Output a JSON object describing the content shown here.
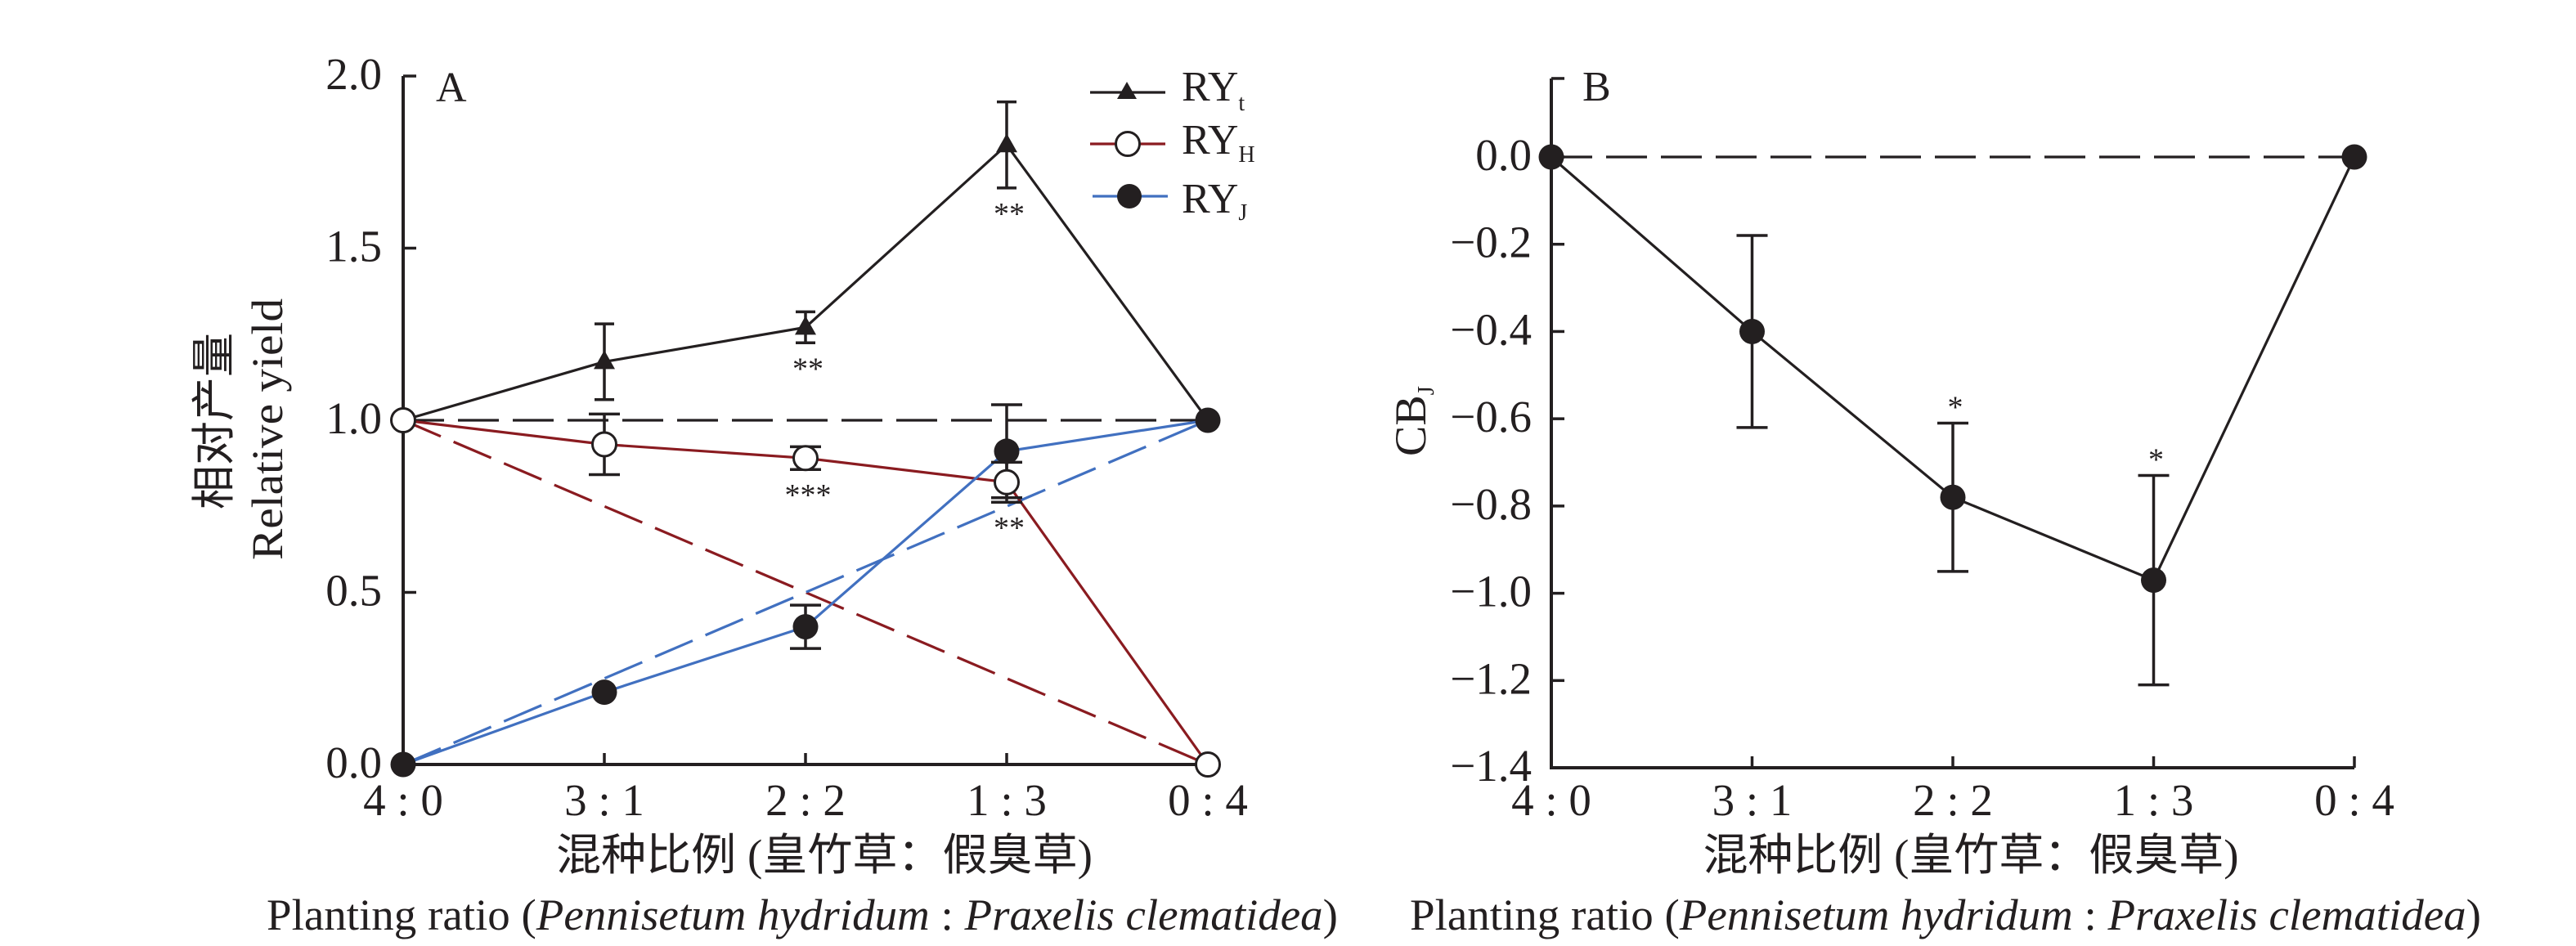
{
  "chart_data": [
    {
      "type": "line",
      "panel_label": "A",
      "x": [
        "4 : 0",
        "3 : 1",
        "2 : 2",
        "1 : 3",
        "0 : 4"
      ],
      "xlabel": {
        "zh": "混种比例 (皇竹草：假臭草)",
        "en_prefix": "Planting ratio (",
        "en_species_1": "Pennisetum hydridum",
        "en_separator": " : ",
        "en_species_2": "Praxelis clematidea",
        "en_suffix": ")"
      },
      "ylabel": {
        "zh": "相对产量",
        "en": "Relative yield"
      },
      "ylim": [
        0,
        2.0
      ],
      "yticks": [
        0.0,
        0.5,
        1.0,
        1.5,
        2.0
      ],
      "ytick_labels": [
        "0.0",
        "0.5",
        "1.0",
        "1.5",
        "2.0"
      ],
      "grid": false,
      "legend": "top-right",
      "series": [
        {
          "name": "RYt",
          "label_main": "RY",
          "label_sub": "t",
          "line_color": "#231f20",
          "marker": "filled-triangle",
          "values": [
            1.0,
            1.17,
            1.27,
            1.8,
            1.0
          ],
          "errors": [
            0,
            0.11,
            0.045,
            0.125,
            0
          ]
        },
        {
          "name": "RYH",
          "label_main": "RY",
          "label_sub": "H",
          "line_color": "#8a1b20",
          "marker": "open-circle",
          "values": [
            1.0,
            0.93,
            0.89,
            0.82,
            0.0
          ],
          "errors": [
            0,
            0.088,
            0.033,
            0.058,
            0
          ]
        },
        {
          "name": "RYJ",
          "label_main": "RY",
          "label_sub": "J",
          "line_color": "#4170c0",
          "marker": "filled-circle",
          "values": [
            0.0,
            0.21,
            0.4,
            0.91,
            1.0
          ],
          "errors": [
            0,
            0,
            0.063,
            0.135,
            0
          ]
        }
      ],
      "reference_lines": [
        {
          "name": "expected-ryt",
          "line_color": "#231f20",
          "style": "dashed",
          "start": 1.0,
          "end": 1.0
        },
        {
          "name": "expected-ryh",
          "line_color": "#8a1b20",
          "style": "dashed",
          "start": 1.0,
          "end": 0.0
        },
        {
          "name": "expected-ryj",
          "line_color": "#4170c0",
          "style": "dashed",
          "start": 0.0,
          "end": 1.0
        }
      ],
      "annotations": [
        {
          "series": "RYt",
          "x_index": 2,
          "text": "**",
          "placement": "below"
        },
        {
          "series": "RYt",
          "x_index": 3,
          "text": "**",
          "placement": "below"
        },
        {
          "series": "RYH",
          "x_index": 2,
          "text": "***",
          "placement": "below"
        },
        {
          "series": "RYH",
          "x_index": 3,
          "text": "**",
          "placement": "below"
        }
      ]
    },
    {
      "type": "line",
      "panel_label": "B",
      "x": [
        "4 : 0",
        "3 : 1",
        "2 : 2",
        "1 : 3",
        "0 : 4"
      ],
      "xlabel": {
        "zh": "混种比例 (皇竹草：假臭草)",
        "en_prefix": "Planting ratio (",
        "en_species_1": "Pennisetum hydridum",
        "en_separator": " : ",
        "en_species_2": "Praxelis clematidea",
        "en_suffix": ")"
      },
      "ylabel": {
        "main": "CB",
        "sub": "J"
      },
      "ylim": [
        -1.4,
        0.18
      ],
      "yticks": [
        0.0,
        -0.2,
        -0.4,
        -0.6,
        -0.8,
        -1.0,
        -1.2,
        -1.4
      ],
      "ytick_labels": [
        "0.0",
        "−0.2",
        "−0.4",
        "−0.6",
        "−0.8",
        "−1.0",
        "−1.2",
        "−1.4"
      ],
      "grid": false,
      "series": [
        {
          "name": "CBJ",
          "line_color": "#231f20",
          "marker": "filled-circle",
          "values": [
            0.0,
            -0.4,
            -0.78,
            -0.97,
            0.0
          ],
          "errors": [
            0,
            0.22,
            0.17,
            0.24,
            0
          ]
        }
      ],
      "reference_lines": [
        {
          "name": "zero-line",
          "line_color": "#231f20",
          "style": "dashed",
          "start": 0.0,
          "end": 0.0
        }
      ],
      "annotations": [
        {
          "series": "CBJ",
          "x_index": 2,
          "text": "*",
          "placement": "above"
        },
        {
          "series": "CBJ",
          "x_index": 3,
          "text": "*",
          "placement": "above"
        }
      ]
    }
  ]
}
